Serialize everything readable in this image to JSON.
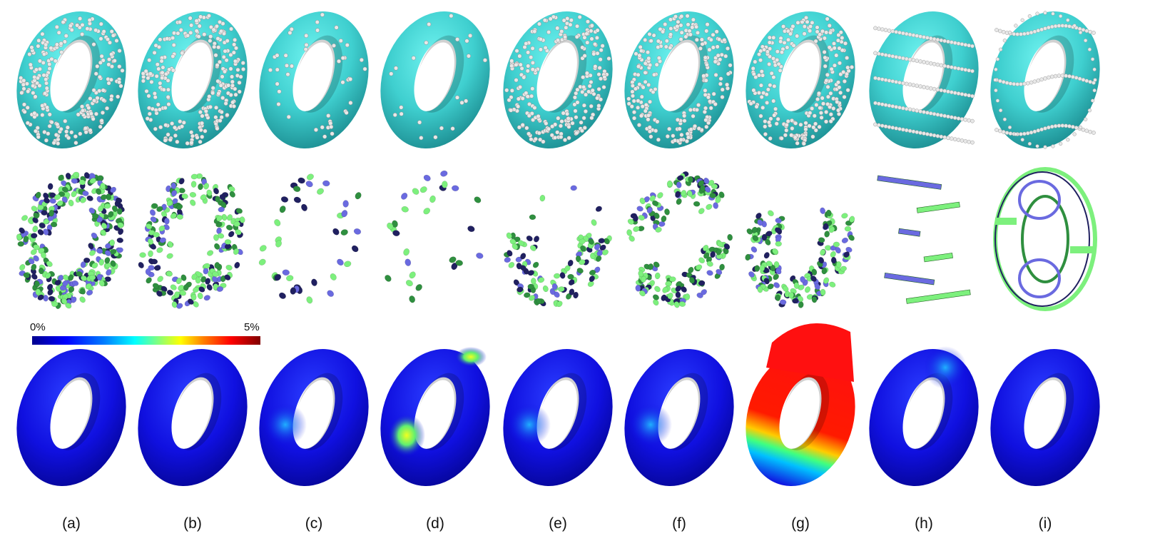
{
  "colorbar": {
    "min_label": "0%",
    "max_label": "5%",
    "colors": [
      "#00008f",
      "#0000ff",
      "#0080ff",
      "#00ffff",
      "#80ff80",
      "#ffff00",
      "#ff8000",
      "#ff0000",
      "#800000"
    ]
  },
  "panel_labels": [
    "(a)",
    "(b)",
    "(c)",
    "(d)",
    "(e)",
    "(f)",
    "(g)",
    "(h)",
    "(i)"
  ],
  "colors": {
    "torus_cyan": "#3fcfcf",
    "torus_cyan_dark": "#1d8f93",
    "sample_point": "#e8e8e8",
    "disk_light_green": "#7df07d",
    "disk_dark_green": "#2f8f3f",
    "disk_blue": "#6a6ae0",
    "disk_navy": "#202060",
    "error_base": "#1010e0"
  },
  "rows": {
    "samples": [
      {
        "panel": "(a)",
        "style": "dense-points"
      },
      {
        "panel": "(b)",
        "style": "dense-points"
      },
      {
        "panel": "(c)",
        "style": "sparse-points"
      },
      {
        "panel": "(d)",
        "style": "very-sparse-points"
      },
      {
        "panel": "(e)",
        "style": "dense-points"
      },
      {
        "panel": "(f)",
        "style": "dense-points"
      },
      {
        "panel": "(g)",
        "style": "dense-points"
      },
      {
        "panel": "(h)",
        "style": "ring-slices"
      },
      {
        "panel": "(i)",
        "style": "meridian-rings"
      }
    ],
    "disks": [
      {
        "panel": "(a)",
        "style": "dense-disks"
      },
      {
        "panel": "(b)",
        "style": "medium-disks"
      },
      {
        "panel": "(c)",
        "style": "sparse-disks"
      },
      {
        "panel": "(d)",
        "style": "very-sparse-disks"
      },
      {
        "panel": "(e)",
        "style": "bottom-half-disks"
      },
      {
        "panel": "(f)",
        "style": "split-disks"
      },
      {
        "panel": "(g)",
        "style": "lower-disks"
      },
      {
        "panel": "(h)",
        "style": "strip-bands"
      },
      {
        "panel": "(i)",
        "style": "ring-bands"
      }
    ],
    "errors": [
      {
        "panel": "(a)",
        "hotspot": "none"
      },
      {
        "panel": "(b)",
        "hotspot": "none"
      },
      {
        "panel": "(c)",
        "hotspot": "low-cyan"
      },
      {
        "panel": "(d)",
        "hotspot": "yellow-inner-left"
      },
      {
        "panel": "(e)",
        "hotspot": "low-cyan"
      },
      {
        "panel": "(f)",
        "hotspot": "low-cyan"
      },
      {
        "panel": "(g)",
        "hotspot": "red-top-bulge"
      },
      {
        "panel": "(h)",
        "hotspot": "cyan-top"
      },
      {
        "panel": "(i)",
        "hotspot": "none"
      }
    ]
  }
}
